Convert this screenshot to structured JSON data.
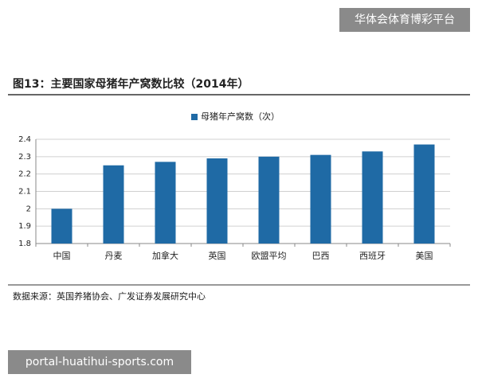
{
  "watermark_top": "华体会体育博彩平台",
  "chart_data": {
    "type": "bar",
    "title": "图13：主要国家母猪年产窝数比较（2014年）",
    "categories": [
      "中国",
      "丹麦",
      "加拿大",
      "英国",
      "欧盟平均",
      "巴西",
      "西班牙",
      "美国"
    ],
    "series": [
      {
        "name": "母猪年产窝数（次）",
        "color": "#1f6aa5",
        "values": [
          2.0,
          2.25,
          2.27,
          2.29,
          2.3,
          2.31,
          2.33,
          2.37
        ]
      }
    ],
    "ylim": [
      1.8,
      2.4
    ],
    "yticks": [
      1.8,
      1.9,
      2,
      2.1,
      2.2,
      2.3,
      2.4
    ],
    "grid": true
  },
  "source": "数据来源：英国养猪协会、广发证券发展研究中心",
  "watermark_bottom": "portal-huatihui-sports.com"
}
